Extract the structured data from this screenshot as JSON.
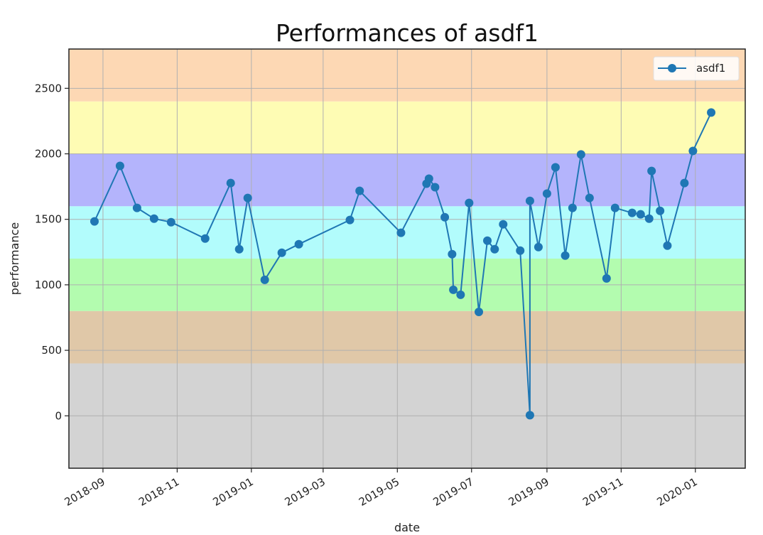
{
  "chart_data": {
    "type": "line",
    "title": "Performances of asdf1",
    "xlabel": "date",
    "ylabel": "performance",
    "ylim": [
      -400,
      2800
    ],
    "xlim": [
      "2018-08-04",
      "2020-02-11"
    ],
    "grid": true,
    "legend_position": "upper right",
    "y_ticks": [
      0,
      500,
      1000,
      1500,
      2000,
      2500
    ],
    "x_ticks": [
      "2018-09",
      "2018-11",
      "2019-01",
      "2019-03",
      "2019-05",
      "2019-07",
      "2019-09",
      "2019-11",
      "2020-01"
    ],
    "bands": [
      {
        "from": -400,
        "to": 400,
        "color": "#d3d3d3"
      },
      {
        "from": 400,
        "to": 800,
        "color": "#e0c8a8"
      },
      {
        "from": 800,
        "to": 1200,
        "color": "#b3fcaf"
      },
      {
        "from": 1200,
        "to": 1600,
        "color": "#b2fcfc"
      },
      {
        "from": 1600,
        "to": 2000,
        "color": "#b4b4fc"
      },
      {
        "from": 2000,
        "to": 2400,
        "color": "#fefcb4"
      },
      {
        "from": 2400,
        "to": 2800,
        "color": "#fdd8b4"
      }
    ],
    "series": [
      {
        "name": "asdf1",
        "color": "#1f77b4",
        "marker": "circle",
        "x": [
          "2018-08-25",
          "2018-09-15",
          "2018-09-29",
          "2018-10-13",
          "2018-10-27",
          "2018-11-24",
          "2018-12-15",
          "2018-12-22",
          "2018-12-29",
          "2019-01-12",
          "2019-01-26",
          "2019-02-09",
          "2019-03-23",
          "2019-03-31",
          "2019-05-04",
          "2019-05-25",
          "2019-05-27",
          "2019-06-01",
          "2019-06-09",
          "2019-06-15",
          "2019-06-16",
          "2019-06-22",
          "2019-06-29",
          "2019-07-07",
          "2019-07-14",
          "2019-07-20",
          "2019-07-27",
          "2019-08-10",
          "2019-08-18",
          "2019-08-18",
          "2019-08-25",
          "2019-09-01",
          "2019-09-08",
          "2019-09-16",
          "2019-09-22",
          "2019-09-29",
          "2019-10-06",
          "2019-10-20",
          "2019-10-27",
          "2019-11-10",
          "2019-11-17",
          "2019-11-24",
          "2019-11-26",
          "2019-12-03",
          "2019-12-09",
          "2019-12-23",
          "2019-12-30",
          "2020-01-14"
        ],
        "values": [
          1484,
          1908,
          1587,
          1505,
          1478,
          1353,
          1777,
          1272,
          1663,
          1038,
          1245,
          1310,
          1495,
          1717,
          1397,
          1772,
          1810,
          1745,
          1516,
          1234,
          962,
          924,
          1625,
          793,
          1337,
          1272,
          1462,
          1261,
          5,
          1641,
          1288,
          1696,
          1897,
          1223,
          1587,
          1995,
          1663,
          1049,
          1587,
          1549,
          1538,
          1505,
          1869,
          1565,
          1299,
          1777,
          2022,
          2315
        ]
      }
    ]
  },
  "legend": {
    "label": "asdf1"
  }
}
